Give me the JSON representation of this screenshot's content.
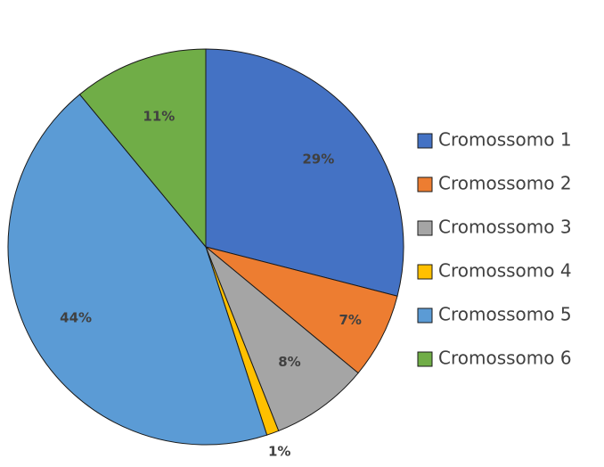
{
  "chart_data": {
    "type": "pie",
    "categories": [
      "Cromossomo 1",
      "Cromossomo 2",
      "Cromossomo 3",
      "Cromossomo 4",
      "Cromossomo 5",
      "Cromossomo 6"
    ],
    "values": [
      29,
      7,
      8,
      1,
      44,
      11
    ],
    "labels": [
      "29%",
      "7%",
      "8%",
      "1%",
      "44%",
      "11%"
    ],
    "colors": [
      "#4472C4",
      "#ED7D31",
      "#A5A5A5",
      "#FFC000",
      "#5B9BD5",
      "#70AD47"
    ],
    "legend_position": "right",
    "start_angle": "12 o'clock, clockwise"
  }
}
